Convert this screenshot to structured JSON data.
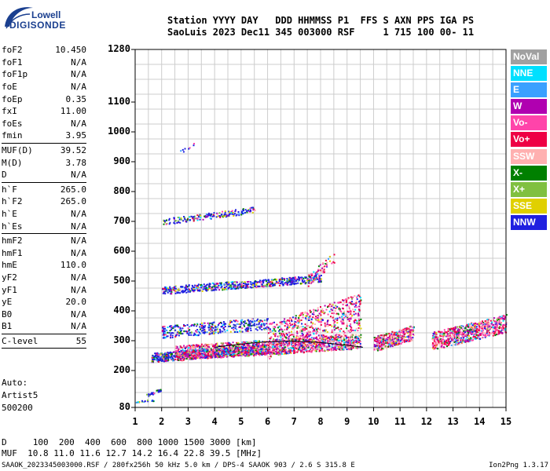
{
  "logo": {
    "line1": "Lowell",
    "line2": "DIGISONDE"
  },
  "header": {
    "line1": "Station YYYY DAY   DDD HHMMSS P1  FFS S AXN PPS IGA PS",
    "line2": "SaoLuis 2023 Dec11 345 003000 RSF     1 715 100 00- 11"
  },
  "params": {
    "group1": [
      {
        "name": "foF2",
        "value": "10.450"
      },
      {
        "name": "foF1",
        "value": "N/A"
      },
      {
        "name": "foF1p",
        "value": "N/A"
      },
      {
        "name": "foE",
        "value": "N/A"
      },
      {
        "name": "foEp",
        "value": "0.35"
      },
      {
        "name": "fxI",
        "value": "11.00"
      },
      {
        "name": "foEs",
        "value": "N/A"
      },
      {
        "name": "fmin",
        "value": "3.95"
      }
    ],
    "group2": [
      {
        "name": "MUF(D)",
        "value": "39.52"
      },
      {
        "name": "M(D)",
        "value": "3.78"
      },
      {
        "name": "D",
        "value": "N/A"
      }
    ],
    "group3": [
      {
        "name": "h`F",
        "value": "265.0"
      },
      {
        "name": "h`F2",
        "value": "265.0"
      },
      {
        "name": "h`E",
        "value": "N/A"
      },
      {
        "name": "h`Es",
        "value": "N/A"
      }
    ],
    "group4": [
      {
        "name": "hmF2",
        "value": "N/A"
      },
      {
        "name": "hmF1",
        "value": "N/A"
      },
      {
        "name": "hmE",
        "value": "110.0"
      },
      {
        "name": "yF2",
        "value": "N/A"
      },
      {
        "name": "yF1",
        "value": "N/A"
      },
      {
        "name": "yE",
        "value": "20.0"
      },
      {
        "name": "B0",
        "value": "N/A"
      },
      {
        "name": "B1",
        "value": "N/A"
      }
    ],
    "group5": [
      {
        "name": "C-level",
        "value": "55"
      }
    ]
  },
  "autoscaling": {
    "line1": "Auto:",
    "line2": "Artist5",
    "line3": "500200"
  },
  "axes": {
    "y_ticks": [
      "1280",
      "1100",
      "1000",
      "900",
      "800",
      "700",
      "600",
      "500",
      "400",
      "300",
      "200",
      "80"
    ],
    "x_ticks": [
      "1",
      "2",
      "3",
      "4",
      "5",
      "6",
      "7",
      "8",
      "9",
      "10",
      "11",
      "12",
      "13",
      "14",
      "15"
    ]
  },
  "legend": [
    {
      "label": "NoVal",
      "color": "#a0a0a0"
    },
    {
      "label": "NNE",
      "color": "#00e0ff"
    },
    {
      "label": "E",
      "color": "#3aa0ff"
    },
    {
      "label": "W",
      "color": "#b000b0"
    },
    {
      "label": "Vo-",
      "color": "#ff44aa"
    },
    {
      "label": "Vo+",
      "color": "#ee0044"
    },
    {
      "label": "SSW",
      "color": "#ffb0b0"
    },
    {
      "label": "X-",
      "color": "#008000"
    },
    {
      "label": "X+",
      "color": "#80c040"
    },
    {
      "label": "SSE",
      "color": "#e0d000"
    },
    {
      "label": "NNW",
      "color": "#2020e0"
    }
  ],
  "bottom": {
    "line1": "D     100  200  400  600  800 1000 1500 3000 [km]",
    "line2": "MUF  10.8 11.0 11.6 12.7 14.2 16.4 22.8 39.5 [MHz]"
  },
  "footer": {
    "left": "SAAOK_2023345003000.RSF / 280fx256h 50 kHz 5.0 km / DPS-4 SAAOK 903 / 2.6 S 315.8 E",
    "right": "Ion2Png 1.3.17"
  }
}
